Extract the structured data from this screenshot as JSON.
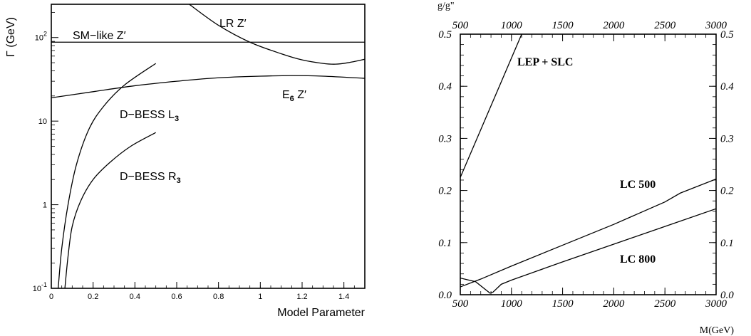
{
  "chart_data": [
    {
      "type": "line",
      "xlabel": "Model Parameter",
      "ylabel": "Γ (GeV)",
      "ylog": true,
      "xlim": [
        0,
        1.5
      ],
      "ylim": [
        0.1,
        250
      ],
      "x_ticks": [
        "0",
        "0.2",
        "0.4",
        "0.6",
        "0.8",
        "1",
        "1.2",
        "1.4"
      ],
      "y_ticks": [
        {
          "value": 0.1,
          "base": "10",
          "exp": "-1"
        },
        {
          "value": 1,
          "base": "1",
          "exp": ""
        },
        {
          "value": 10,
          "base": "10",
          "exp": ""
        },
        {
          "value": 100,
          "base": "10",
          "exp": "2"
        }
      ],
      "series": [
        {
          "name": "SM−like Z′",
          "label": {
            "text": "SM−like Z′",
            "sub": ""
          },
          "x": [
            0,
            1.5
          ],
          "y": [
            88,
            88
          ]
        },
        {
          "name": "LR Z′",
          "label": {
            "text": "LR Z′",
            "sub": ""
          },
          "x": [
            0.66,
            0.8,
            0.95,
            1.1,
            1.2,
            1.3,
            1.36,
            1.42,
            1.5
          ],
          "y": [
            250,
            140,
            88,
            64,
            54,
            49,
            48,
            50,
            55
          ]
        },
        {
          "name": "E6 Z′",
          "label": {
            "text": "E",
            "sub": "6",
            "after": " Z′"
          },
          "x": [
            0,
            0.2,
            0.4,
            0.6,
            0.8,
            1.0,
            1.15,
            1.3,
            1.5
          ],
          "y": [
            19,
            22.5,
            26.5,
            30,
            33,
            34.5,
            35,
            34.5,
            32.5
          ]
        },
        {
          "name": "D−BESS L3",
          "label": {
            "text": "D−BESS L",
            "sub": "3"
          },
          "x": [
            0.033,
            0.05,
            0.08,
            0.12,
            0.18,
            0.25,
            0.35,
            0.5
          ],
          "y": [
            0.1,
            0.3,
            1.0,
            3.0,
            8.0,
            15.0,
            27.0,
            49.0
          ]
        },
        {
          "name": "D−BESS R3",
          "label": {
            "text": "D−BESS R",
            "sub": "3"
          },
          "x": [
            0.065,
            0.08,
            0.1,
            0.14,
            0.2,
            0.28,
            0.38,
            0.5
          ],
          "y": [
            0.1,
            0.24,
            0.55,
            1.1,
            2.0,
            3.2,
            5.0,
            7.3
          ]
        }
      ]
    },
    {
      "type": "line",
      "xlabel": "M(GeV)",
      "top_axis_label": "g/g\"",
      "xlim": [
        500,
        3000
      ],
      "ylim": [
        0,
        0.5
      ],
      "x_ticks": [
        "500",
        "1000",
        "1500",
        "2000",
        "2500",
        "3000"
      ],
      "y_ticks": [
        "0.0",
        "0.1",
        "0.2",
        "0.3",
        "0.4",
        "0.5"
      ],
      "series": [
        {
          "name": "LEP + SLC",
          "x": [
            500,
            1100
          ],
          "y": [
            0.225,
            0.5
          ]
        },
        {
          "name": "LC 500",
          "x": [
            500,
            700,
            1000,
            1500,
            2000,
            2500,
            2650,
            3000
          ],
          "y": [
            0.015,
            0.03,
            0.055,
            0.095,
            0.135,
            0.178,
            0.195,
            0.222
          ]
        },
        {
          "name": "LC 800",
          "x": [
            500,
            650,
            790,
            820,
            900,
            1000,
            1500,
            2000,
            2500,
            3000
          ],
          "y": [
            0.032,
            0.025,
            0.003,
            0.005,
            0.02,
            0.028,
            0.063,
            0.097,
            0.131,
            0.165
          ]
        }
      ]
    }
  ]
}
